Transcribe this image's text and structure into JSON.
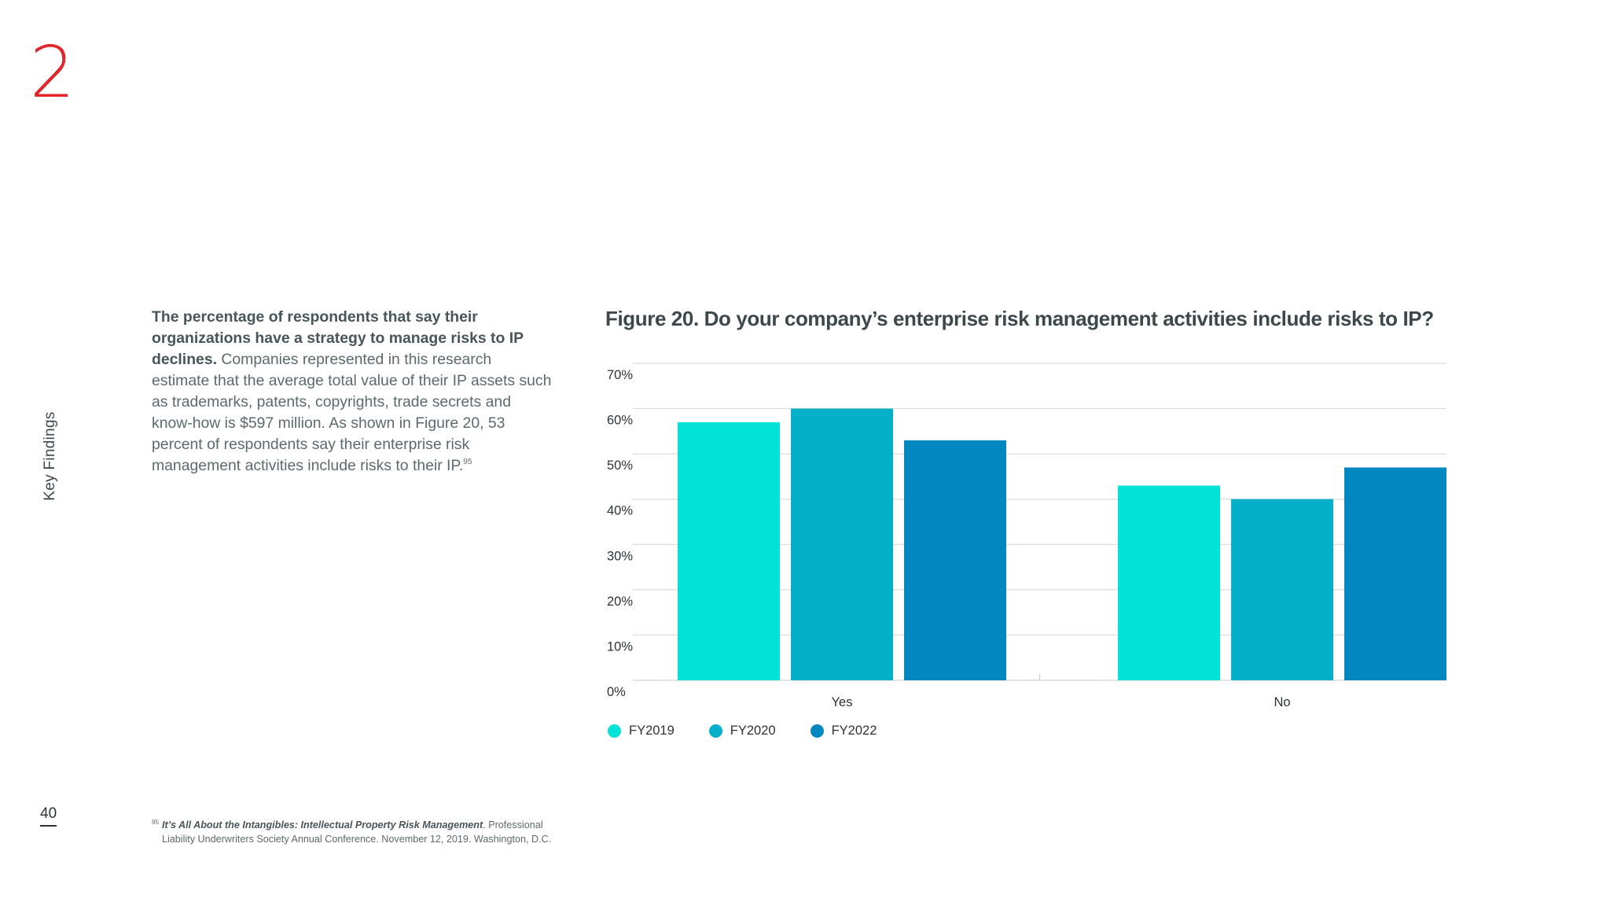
{
  "page": {
    "chapter_number": "2",
    "section_label": "Key Findings",
    "page_number": "40"
  },
  "body": {
    "lead_bold": "The percentage of respondents that say their organizations have a strategy to manage risks to IP declines.",
    "text": " Companies represented in this research estimate that the average total value of their IP assets such as trademarks, patents, copyrights, trade secrets and know-how is $597 million. As shown in Figure 20, 53 percent of respondents say their enterprise risk management activities include risks to their IP.",
    "footnote_ref": "95"
  },
  "footnote": {
    "number": "95",
    "title": "It’s All About the Intangibles: Intellectual Property Risk Management",
    "text": ". Professional Liability Underwriters Society Annual Conference. November 12, 2019. Washington, D.C."
  },
  "colors": {
    "accent_red": "#e0262b",
    "fy2019": "#03e2d6",
    "fy2020": "#03afc9",
    "fy2022": "#0287c0",
    "gridline": "#d9dcde"
  },
  "chart_data": {
    "type": "bar",
    "title": "Figure 20. Do your company’s enterprise risk management activities include risks to IP?",
    "categories": [
      "Yes",
      "No"
    ],
    "series": [
      {
        "name": "FY2019",
        "color": "#03e2d6",
        "values": [
          57,
          43
        ]
      },
      {
        "name": "FY2020",
        "color": "#03afc9",
        "values": [
          60,
          40
        ]
      },
      {
        "name": "FY2022",
        "color": "#0287c0",
        "values": [
          53,
          47
        ]
      }
    ],
    "ylim": [
      0,
      70
    ],
    "yticks": [
      "0%",
      "10%",
      "20%",
      "30%",
      "40%",
      "50%",
      "60%",
      "70%"
    ],
    "grid": true,
    "legend_position": "bottom-left"
  }
}
